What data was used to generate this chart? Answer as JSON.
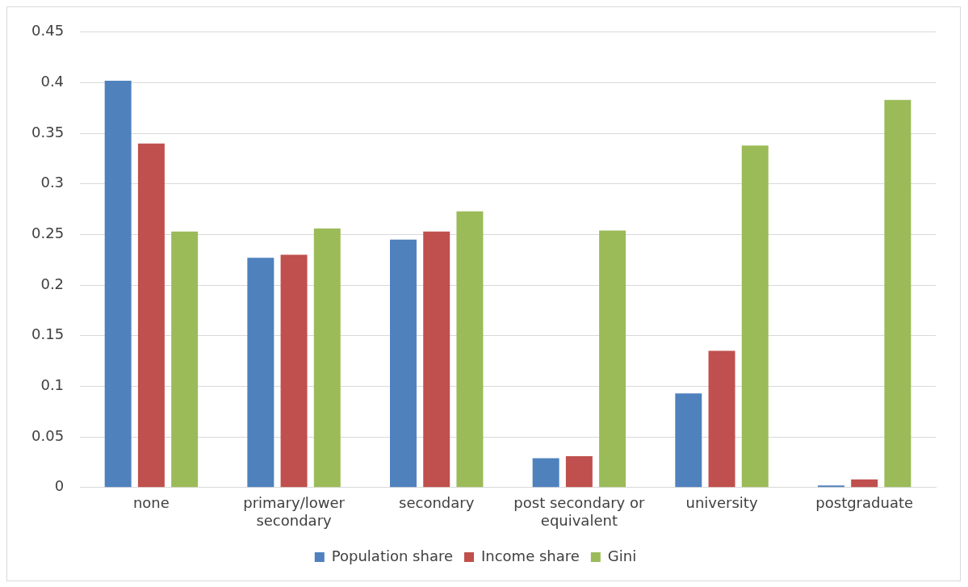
{
  "chart_data": {
    "type": "bar",
    "categories": [
      "none",
      "primary/lower secondary",
      "secondary",
      "post secondary or equivalent",
      "university",
      "postgraduate"
    ],
    "series": [
      {
        "name": "Population share",
        "color": "#4f81bd",
        "values": [
          0.402,
          0.227,
          0.245,
          0.029,
          0.093,
          0.002
        ]
      },
      {
        "name": "Income share",
        "color": "#c0504d",
        "values": [
          0.34,
          0.23,
          0.253,
          0.031,
          0.135,
          0.008
        ]
      },
      {
        "name": "Gini",
        "color": "#9bbb59",
        "values": [
          0.253,
          0.256,
          0.273,
          0.254,
          0.338,
          0.383
        ]
      }
    ],
    "ylim": [
      0,
      0.45
    ],
    "yticks": [
      0,
      0.05,
      0.1,
      0.15,
      0.2,
      0.25,
      0.3,
      0.35,
      0.4,
      0.45
    ],
    "grid": "y",
    "legend": "bottom"
  }
}
